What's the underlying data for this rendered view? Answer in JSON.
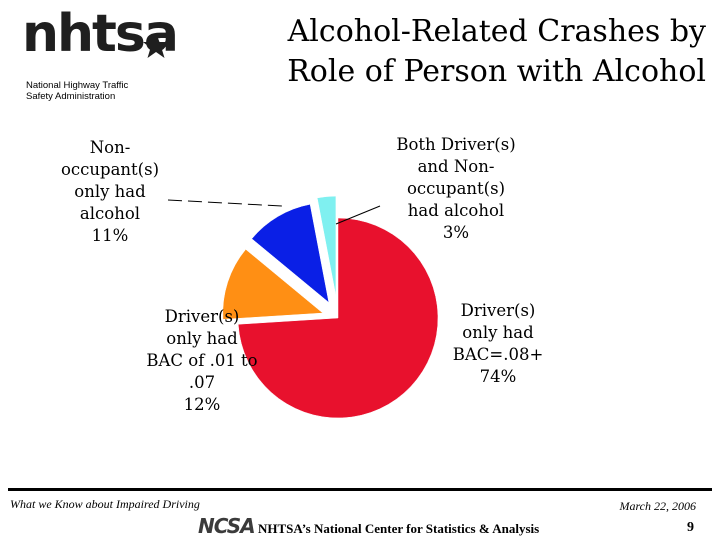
{
  "logo": {
    "wordmark": "nhtsa",
    "subtitle_line1": "National Highway Traffic",
    "subtitle_line2": "Safety Administration"
  },
  "title": {
    "line1": "Alcohol-Related Crashes by",
    "line2": "Role of Person with Alcohol"
  },
  "chart_data": {
    "type": "pie",
    "title": "Alcohol-Related Crashes by Role of Person with Alcohol",
    "slices": [
      {
        "label_lines": [
          "Driver(s)",
          "only had",
          "BAC=.08+",
          "74%"
        ],
        "value": 74,
        "color": "#e8112d"
      },
      {
        "label_lines": [
          "Driver(s)",
          "only had",
          "BAC of .01 to",
          ".07",
          "12%"
        ],
        "value": 12,
        "color": "#ff8f14"
      },
      {
        "label_lines": [
          "Non-",
          "occupant(s)",
          "only had",
          "alcohol",
          "11%"
        ],
        "value": 11,
        "color": "#0a1fe6"
      },
      {
        "label_lines": [
          "Both Driver(s)",
          "and Non-",
          "occupant(s)",
          "had alcohol",
          "3%"
        ],
        "value": 3,
        "color": "#7ff0f0"
      }
    ]
  },
  "footer": {
    "left_text": "What we Know about Impaired Driving",
    "date": "March 22, 2006",
    "ncsa_logo": "NCSA",
    "center_text": "NHTSA’s National Center for Statistics & Analysis",
    "page_number": "9"
  }
}
